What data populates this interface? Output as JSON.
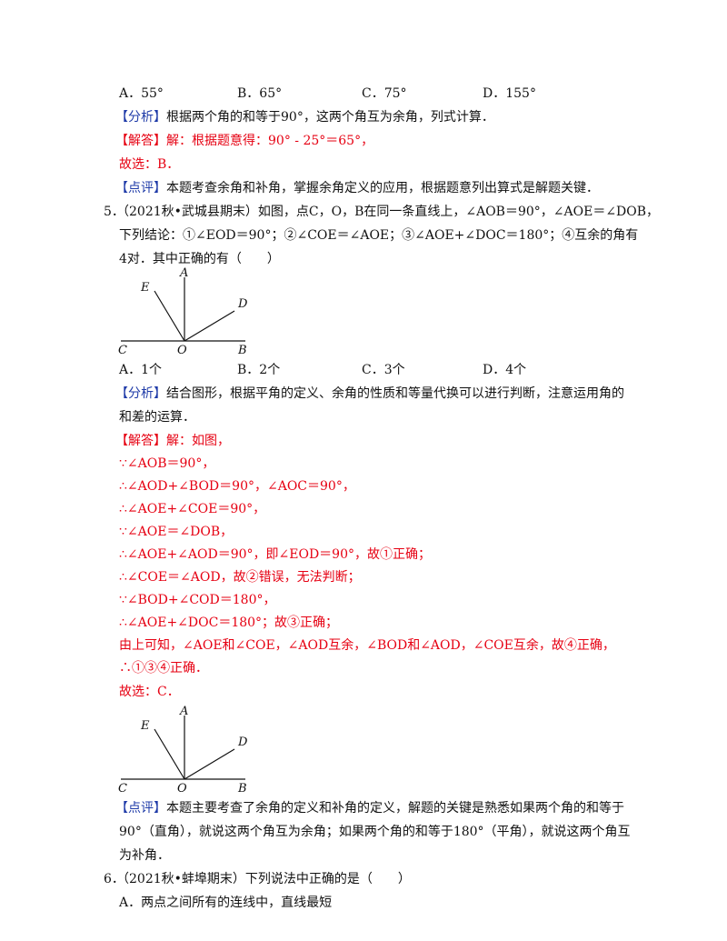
{
  "q4": {
    "options": [
      "A．55°",
      "B．65°",
      "C．75°",
      "D．155°"
    ],
    "analysis_tag": "【分析】",
    "analysis": "根据两个角的和等于90°，这两个角互为余角，列式计算．",
    "answer_tag": "【解答】",
    "answer": "解：根据题意得：90° - 25°＝65°，",
    "choice": "故选：B．",
    "comment_tag": "【点评】",
    "comment": "本题考查余角和补角，掌握余角定义的应用，根据题意列出算式是解题关键．"
  },
  "q5": {
    "number": "5．",
    "stem_line1": "（2021秋•武城县期末）如图，点C，O，B在同一条直线上，∠AOB＝90°，∠AOE＝∠DOB，",
    "stem_line2": "下列结论：①∠EOD＝90°；②∠COE＝∠AOE；③∠AOE+∠DOC＝180°；④互余的角有",
    "stem_line3": "4对．其中正确的有（　　）",
    "figure_labels": {
      "A": "A",
      "E": "E",
      "D": "D",
      "C": "C",
      "O": "O",
      "B": "B"
    },
    "options": [
      "A．1个",
      "B．2个",
      "C．3个",
      "D．4个"
    ],
    "analysis_tag": "【分析】",
    "analysis_line1": "结合图形，根据平角的定义、余角的性质和等量代换可以进行判断，注意运用角的",
    "analysis_line2": "和差的运算．",
    "answer_tag": "【解答】",
    "answer_lines": [
      "解：如图，",
      "∵∠AOB＝90°，",
      "∴∠AOD+∠BOD＝90°，∠AOC＝90°，",
      "∴∠AOE+∠COE＝90°，",
      "∵∠AOE＝∠DOB，",
      "∴∠AOE+∠AOD＝90°，即∠EOD＝90°，故①正确；",
      "∴∠COE＝∠AOD，故②错误，无法判断；",
      "∵∠BOD+∠COD＝180°，",
      "∴∠AOE+∠DOC＝180°；故③正确；",
      "由上可知，∠AOE和∠COE，∠AOD互余，∠BOD和∠AOD，∠COE互余，故④正确，",
      "∴①③④正确．",
      "故选：C．"
    ],
    "comment_tag": "【点评】",
    "comment_line1": "本题主要考查了余角的定义和补角的定义，解题的关键是熟悉如果两个角的和等于",
    "comment_line2": "90°（直角），就说这两个角互为余角；如果两个角的和等于180°（平角），就说这两个角互",
    "comment_line3": "为补角．"
  },
  "q6": {
    "number": "6．",
    "stem": "（2021秋•蚌埠期末）下列说法中正确的是（　　）",
    "option_a": "A．两点之间所有的连线中，直线最短"
  }
}
